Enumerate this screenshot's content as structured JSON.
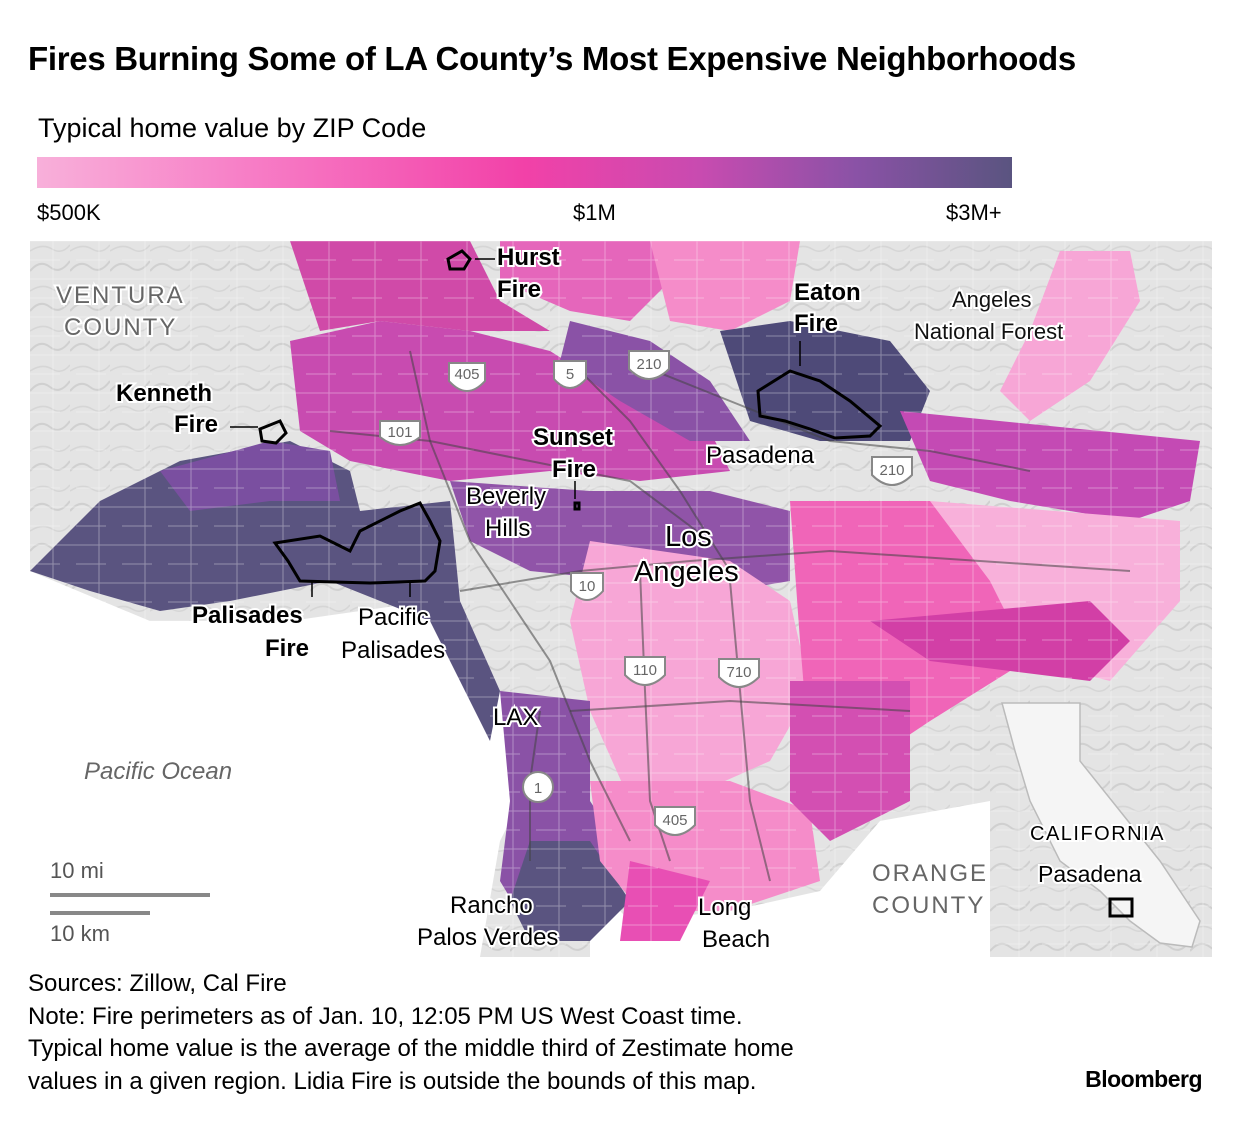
{
  "title": "Fires Burning Some of LA County’s Most Expensive Neighborhoods",
  "legend": {
    "title": "Typical home value by ZIP Code",
    "low_label": "$500K",
    "mid_label": "$1M",
    "high_label": "$3M+",
    "colors": [
      "#f8b0da",
      "#f77dc6",
      "#f241a8",
      "#c84bb0",
      "#8a52a6",
      "#5a5480"
    ]
  },
  "map": {
    "regions": {
      "ventura_line1": "VENTURA",
      "ventura_line2": "COUNTY",
      "angeles_line1": "Angeles",
      "angeles_line2": "National Forest",
      "orange_line1": "ORANGE",
      "orange_line2": "COUNTY",
      "ocean": "Pacific Ocean"
    },
    "fires": {
      "hurst_line1": "Hurst",
      "hurst_line2": "Fire",
      "eaton_line1": "Eaton",
      "eaton_line2": "Fire",
      "kenneth_line1": "Kenneth",
      "kenneth_line2": "Fire",
      "sunset_line1": "Sunset",
      "sunset_line2": "Fire",
      "palisades_line1": "Palisades",
      "palisades_line2": "Fire"
    },
    "places": {
      "pasadena": "Pasadena",
      "beverly_line1": "Beverly",
      "beverly_line2": "Hills",
      "la_line1": "Los",
      "la_line2": "Angeles",
      "pacpal_line1": "Pacific",
      "pacpal_line2": "Palisades",
      "lax": "LAX",
      "rpv_line1": "Rancho",
      "rpv_line2": "Palos Verdes",
      "lb_line1": "Long",
      "lb_line2": "Beach"
    },
    "highways": {
      "i405": "405",
      "i5": "5",
      "i210": "210",
      "us101": "101",
      "i10": "10",
      "i110": "110",
      "i710": "710",
      "i405b": "405",
      "ca1": "1",
      "i210b": "210"
    },
    "scale": {
      "miles": "10 mi",
      "km": "10 km"
    },
    "inset": {
      "state": "CALIFORNIA",
      "marker_label": "Pasadena"
    }
  },
  "notes": {
    "sources": "Sources: Zillow, Cal Fire",
    "line1": "Note: Fire perimeters as of Jan. 10, 12:05 PM US West Coast time.",
    "line2": "Typical home value is the average of the middle third of Zestimate home",
    "line3": "values in a given region. Lidia Fire is outside the bounds of this map."
  },
  "brand": "Bloomberg"
}
